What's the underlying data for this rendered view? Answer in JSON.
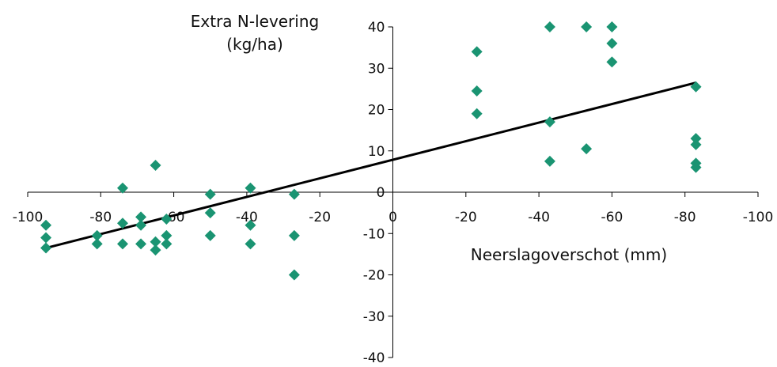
{
  "chart_data": {
    "type": "scatter",
    "ylabel_lines": [
      "Extra N-levering",
      "(kg/ha)"
    ],
    "xlabel": "Neerslagoverschot (mm)",
    "x_tick_labels": [
      "-100",
      "-80",
      "-60",
      "-40",
      "-20",
      "0",
      "-20",
      "-40",
      "-60",
      "-80",
      "-100"
    ],
    "y_ticks": [
      -40,
      -30,
      -20,
      -10,
      0,
      10,
      20,
      30,
      40
    ],
    "xlim": [
      -100,
      100
    ],
    "ylim": [
      -40,
      40
    ],
    "marker_color": "#1a9472",
    "trendline_color": "#000000",
    "points": [
      {
        "x": -95,
        "y": -8
      },
      {
        "x": -95,
        "y": -11
      },
      {
        "x": -95,
        "y": -13.5
      },
      {
        "x": -81,
        "y": -10.5
      },
      {
        "x": -81,
        "y": -12.5
      },
      {
        "x": -74,
        "y": 1
      },
      {
        "x": -74,
        "y": -7.5
      },
      {
        "x": -74,
        "y": -12.5
      },
      {
        "x": -69,
        "y": -6
      },
      {
        "x": -69,
        "y": -8
      },
      {
        "x": -69,
        "y": -12.5
      },
      {
        "x": -65,
        "y": 6.5
      },
      {
        "x": -65,
        "y": -12
      },
      {
        "x": -65,
        "y": -14
      },
      {
        "x": -62,
        "y": -6.5
      },
      {
        "x": -62,
        "y": -10.5
      },
      {
        "x": -62,
        "y": -12.5
      },
      {
        "x": -50,
        "y": -0.5
      },
      {
        "x": -50,
        "y": -5
      },
      {
        "x": -50,
        "y": -10.5
      },
      {
        "x": -39,
        "y": 1
      },
      {
        "x": -39,
        "y": -8
      },
      {
        "x": -39,
        "y": -12.5
      },
      {
        "x": -27,
        "y": -0.5
      },
      {
        "x": -27,
        "y": -10.5
      },
      {
        "x": -27,
        "y": -20
      },
      {
        "x": 23,
        "y": 34
      },
      {
        "x": 23,
        "y": 24.5
      },
      {
        "x": 23,
        "y": 19
      },
      {
        "x": 43,
        "y": 40
      },
      {
        "x": 43,
        "y": 17
      },
      {
        "x": 43,
        "y": 7.5
      },
      {
        "x": 53,
        "y": 40
      },
      {
        "x": 53,
        "y": 10.5
      },
      {
        "x": 60,
        "y": 40
      },
      {
        "x": 60,
        "y": 36
      },
      {
        "x": 60,
        "y": 31.5
      },
      {
        "x": 83,
        "y": 25.5
      },
      {
        "x": 83,
        "y": 13
      },
      {
        "x": 83,
        "y": 11.5
      },
      {
        "x": 83,
        "y": 7
      },
      {
        "x": 83,
        "y": 6
      }
    ],
    "trendline": {
      "x1": -95,
      "y1": -13.5,
      "x2": 83,
      "y2": 26.5
    }
  }
}
